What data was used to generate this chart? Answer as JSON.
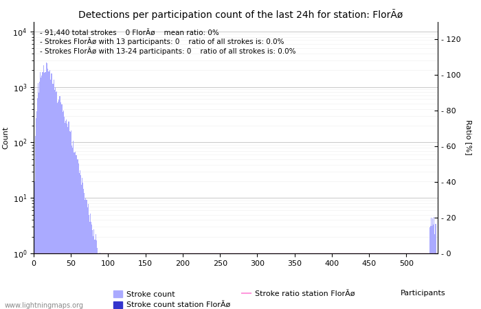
{
  "title": "Detections per participation count of the last 24h for station: FlorÃø",
  "annotation_lines": [
    "91,440 total strokes    0 FlorÃø    mean ratio: 0%",
    "Strokes FlorÃø with 13 participants: 0    ratio of all strokes is: 0.0%",
    "Strokes FlorÃø with 13-24 participants: 0    ratio of all strokes is: 0.0%"
  ],
  "xlabel": "Participants",
  "ylabel_left": "Count",
  "ylabel_right": "Ratio [%]",
  "xlim": [
    0,
    542
  ],
  "ylim_left": [
    1,
    15000
  ],
  "ylim_right": [
    0,
    130
  ],
  "yticks_right": [
    0,
    20,
    40,
    60,
    80,
    100,
    120
  ],
  "bar_color_main": "#aaaaff",
  "bar_color_station": "#3333cc",
  "line_color_ratio": "#ff99dd",
  "legend_labels": [
    "Stroke count",
    "Stroke count station FlorÃø",
    "Stroke ratio station FlorÃø"
  ],
  "watermark": "www.lightningmaps.org",
  "num_participants": 540,
  "background_color": "#ffffff",
  "grid_color": "#cccccc",
  "title_fontsize": 10,
  "annotation_fontsize": 7.5,
  "axis_fontsize": 8,
  "tick_fontsize": 8
}
